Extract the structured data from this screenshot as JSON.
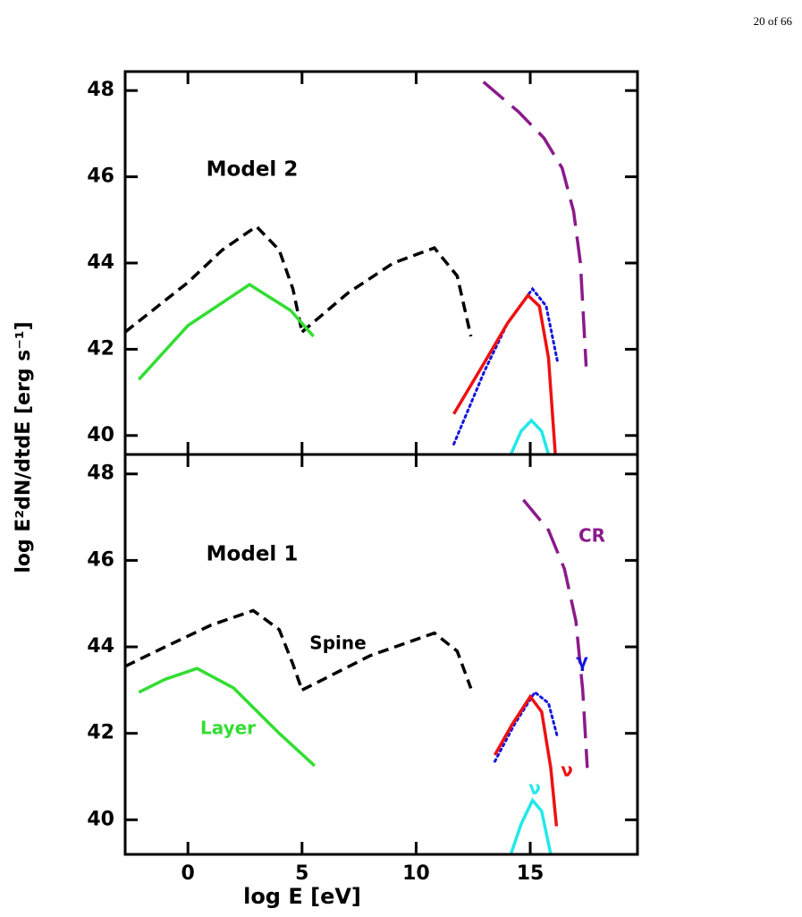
{
  "header": {
    "page": "20 of 66"
  },
  "chart_data": [
    {
      "type": "line",
      "annotation": [
        "Model 2"
      ],
      "annotation_colors": [
        "#000000"
      ],
      "ylabel": "log E²dN/dtdE [erg s⁻¹]",
      "xlim": [
        -2.75,
        19.7
      ],
      "ylim": [
        39.56,
        48.44
      ],
      "xticks": [
        0,
        5,
        10,
        15
      ],
      "yticks": [
        40,
        42,
        44,
        46,
        48
      ],
      "series": [
        {
          "color": "#000000",
          "style": "dashed",
          "x": [
            -2.75,
            0,
            1.5,
            3.0,
            4.0,
            4.6,
            5.0
          ],
          "values": [
            42.4,
            43.55,
            44.3,
            44.85,
            44.3,
            43.4,
            42.4
          ]
        },
        {
          "color": "#000000",
          "style": "dashed",
          "x": [
            5.0,
            7,
            9,
            10.8,
            11.8,
            12.4
          ],
          "values": [
            42.4,
            43.3,
            44.0,
            44.35,
            43.7,
            42.3
          ]
        },
        {
          "color": "#33dd33",
          "style": "solid",
          "x": [
            -2.15,
            0,
            2.7,
            4.5,
            5.5
          ],
          "values": [
            41.3,
            42.55,
            43.5,
            42.9,
            42.3
          ]
        },
        {
          "color": "#1515dd",
          "style": "dotted",
          "x": [
            11.65,
            13,
            14,
            15.1,
            15.7,
            16.2
          ],
          "values": [
            39.8,
            41.5,
            42.6,
            43.4,
            43.0,
            41.7
          ]
        },
        {
          "color": "#ee1111",
          "style": "solid",
          "x": [
            11.65,
            13,
            14,
            14.9,
            15.4,
            15.8,
            16.1
          ],
          "values": [
            40.5,
            41.7,
            42.6,
            43.25,
            43.0,
            41.8,
            39.56
          ]
        },
        {
          "color": "#22e8e8",
          "style": "solid",
          "x": [
            14.15,
            14.6,
            15.05,
            15.5,
            15.8
          ],
          "values": [
            39.56,
            40.1,
            40.35,
            40.1,
            39.56
          ]
        },
        {
          "color": "#8b1a8b",
          "style": "longdash",
          "x": [
            12.95,
            14.5,
            15.6,
            16.4,
            16.9,
            17.2,
            17.45
          ],
          "values": [
            48.2,
            47.5,
            46.9,
            46.2,
            45.2,
            44.0,
            41.6
          ]
        }
      ]
    },
    {
      "type": "line",
      "annotation": [
        "Model 1",
        "Spine",
        "Layer",
        "CR",
        "γ",
        "ν",
        "ν"
      ],
      "annotation_colors": [
        "#000000",
        "#000000",
        "#33dd33",
        "#8b1a8b",
        "#1515dd",
        "#ee1111",
        "#22e8e8"
      ],
      "xlabel": "log E [eV]",
      "xlim": [
        -2.75,
        19.7
      ],
      "ylim": [
        39.2,
        48.45
      ],
      "xticks": [
        0,
        5,
        10,
        15
      ],
      "yticks": [
        40,
        42,
        44,
        46,
        48
      ],
      "series": [
        {
          "color": "#000000",
          "style": "dashed",
          "x": [
            -2.75,
            -1,
            1,
            2.86,
            4.0,
            4.6,
            5.0
          ],
          "values": [
            43.55,
            44.0,
            44.5,
            44.84,
            44.4,
            43.6,
            43.0
          ]
        },
        {
          "color": "#000000",
          "style": "dashed",
          "x": [
            5.0,
            8,
            10.8,
            11.8,
            12.4
          ],
          "values": [
            43.0,
            43.8,
            44.32,
            43.9,
            43.04
          ]
        },
        {
          "color": "#33dd33",
          "style": "solid",
          "x": [
            -2.15,
            -1,
            0.4,
            2,
            4,
            5.55
          ],
          "values": [
            42.95,
            43.25,
            43.5,
            43.05,
            42.0,
            41.25
          ]
        },
        {
          "color": "#1515dd",
          "style": "dotted",
          "x": [
            13.45,
            14.3,
            15.2,
            15.8,
            16.2
          ],
          "values": [
            41.35,
            42.2,
            42.95,
            42.7,
            41.9
          ]
        },
        {
          "color": "#ee1111",
          "style": "solid",
          "x": [
            13.45,
            14.2,
            15.0,
            15.5,
            15.9,
            16.15
          ],
          "values": [
            41.5,
            42.2,
            42.85,
            42.5,
            41.2,
            39.85
          ]
        },
        {
          "color": "#22e8e8",
          "style": "solid",
          "x": [
            14.15,
            14.6,
            15.1,
            15.5,
            15.9
          ],
          "values": [
            39.2,
            39.9,
            40.45,
            40.2,
            39.2
          ]
        },
        {
          "color": "#8b1a8b",
          "style": "longdash",
          "x": [
            14.7,
            15.8,
            16.5,
            17.0,
            17.3,
            17.5
          ],
          "values": [
            47.4,
            46.7,
            45.8,
            44.6,
            43.0,
            41.2
          ]
        }
      ]
    }
  ]
}
